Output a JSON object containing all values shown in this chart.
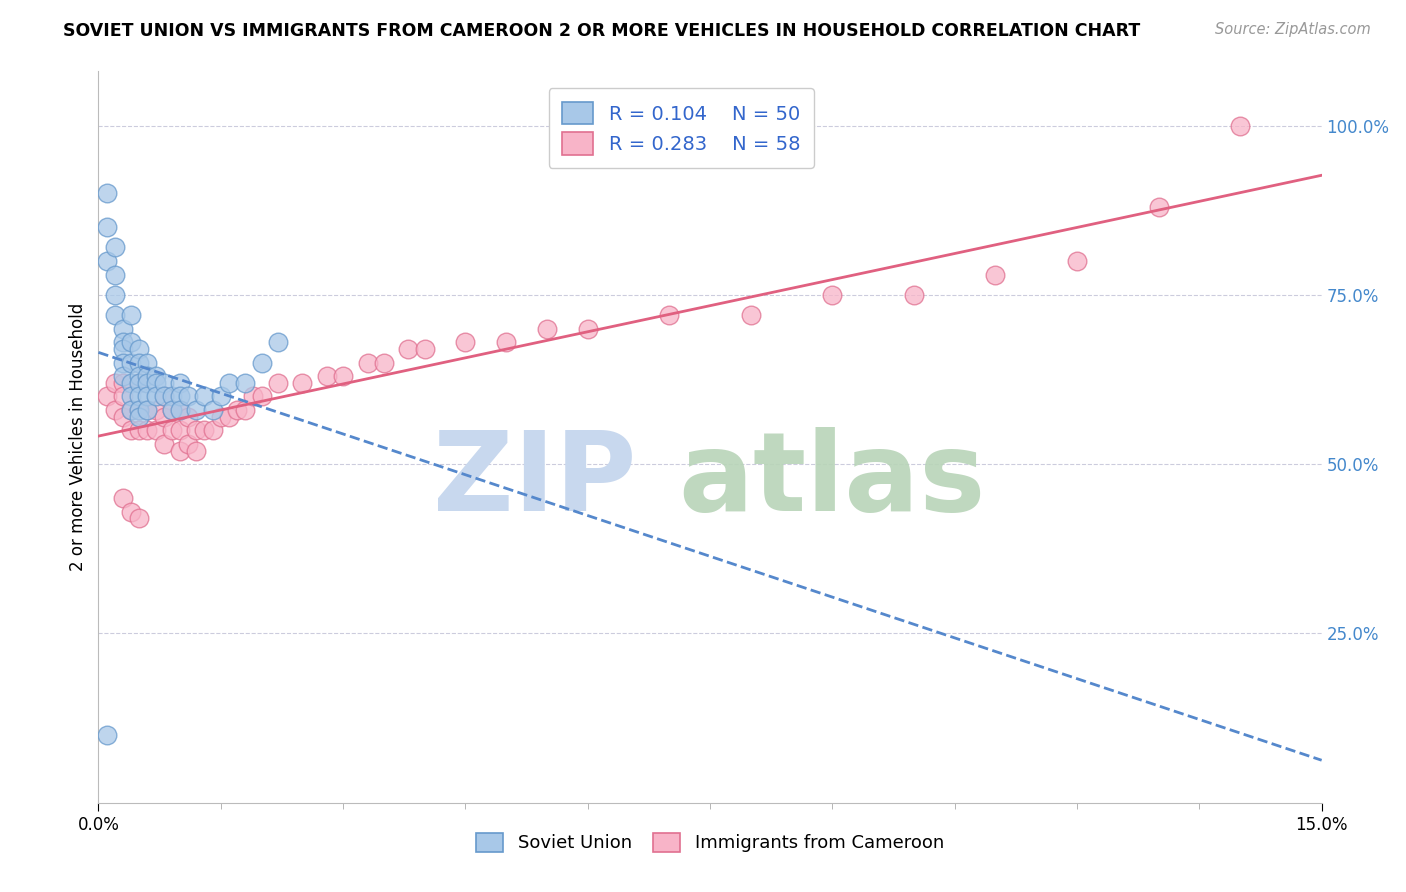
{
  "title": "SOVIET UNION VS IMMIGRANTS FROM CAMEROON 2 OR MORE VEHICLES IN HOUSEHOLD CORRELATION CHART",
  "source": "Source: ZipAtlas.com",
  "ylabel": "2 or more Vehicles in Household",
  "xlim": [
    0.0,
    0.15
  ],
  "ylim": [
    0.0,
    1.08
  ],
  "ytick_positions": [
    0.25,
    0.5,
    0.75,
    1.0
  ],
  "ytick_labels": [
    "25.0%",
    "50.0%",
    "75.0%",
    "100.0%"
  ],
  "ytick_color": "#4488cc",
  "legend_r1": "R = 0.104",
  "legend_n1": "N = 50",
  "legend_r2": "R = 0.283",
  "legend_n2": "N = 58",
  "color_soviet": "#a8c8e8",
  "color_cameroon": "#f8b4c8",
  "edge_soviet": "#6699cc",
  "edge_cameroon": "#e07090",
  "line_soviet_color": "#5588cc",
  "line_cameroon_color": "#e06080",
  "grid_color": "#ccccdd",
  "watermark_zip_color": "#c8d8ee",
  "watermark_atlas_color": "#b8d4b8",
  "soviet_x": [
    0.001,
    0.001,
    0.001,
    0.002,
    0.002,
    0.002,
    0.002,
    0.003,
    0.003,
    0.003,
    0.003,
    0.003,
    0.004,
    0.004,
    0.004,
    0.004,
    0.004,
    0.004,
    0.005,
    0.005,
    0.005,
    0.005,
    0.005,
    0.005,
    0.005,
    0.006,
    0.006,
    0.006,
    0.006,
    0.006,
    0.007,
    0.007,
    0.007,
    0.008,
    0.008,
    0.009,
    0.009,
    0.01,
    0.01,
    0.01,
    0.011,
    0.012,
    0.013,
    0.014,
    0.015,
    0.016,
    0.018,
    0.02,
    0.022,
    0.001
  ],
  "soviet_y": [
    0.9,
    0.85,
    0.8,
    0.82,
    0.78,
    0.75,
    0.72,
    0.7,
    0.68,
    0.67,
    0.65,
    0.63,
    0.72,
    0.68,
    0.65,
    0.62,
    0.6,
    0.58,
    0.67,
    0.65,
    0.63,
    0.62,
    0.6,
    0.58,
    0.57,
    0.65,
    0.63,
    0.62,
    0.6,
    0.58,
    0.63,
    0.62,
    0.6,
    0.62,
    0.6,
    0.6,
    0.58,
    0.62,
    0.6,
    0.58,
    0.6,
    0.58,
    0.6,
    0.58,
    0.6,
    0.62,
    0.62,
    0.65,
    0.68,
    0.1
  ],
  "cameroon_x": [
    0.001,
    0.002,
    0.002,
    0.003,
    0.003,
    0.003,
    0.004,
    0.004,
    0.005,
    0.005,
    0.005,
    0.006,
    0.006,
    0.007,
    0.007,
    0.008,
    0.008,
    0.008,
    0.009,
    0.009,
    0.01,
    0.01,
    0.01,
    0.011,
    0.011,
    0.012,
    0.012,
    0.013,
    0.014,
    0.015,
    0.016,
    0.017,
    0.018,
    0.019,
    0.02,
    0.022,
    0.025,
    0.028,
    0.03,
    0.033,
    0.035,
    0.038,
    0.04,
    0.045,
    0.05,
    0.055,
    0.06,
    0.07,
    0.08,
    0.09,
    0.1,
    0.11,
    0.12,
    0.13,
    0.003,
    0.004,
    0.005,
    0.14
  ],
  "cameroon_y": [
    0.6,
    0.62,
    0.58,
    0.62,
    0.6,
    0.57,
    0.58,
    0.55,
    0.62,
    0.58,
    0.55,
    0.58,
    0.55,
    0.58,
    0.55,
    0.6,
    0.57,
    0.53,
    0.58,
    0.55,
    0.58,
    0.55,
    0.52,
    0.57,
    0.53,
    0.55,
    0.52,
    0.55,
    0.55,
    0.57,
    0.57,
    0.58,
    0.58,
    0.6,
    0.6,
    0.62,
    0.62,
    0.63,
    0.63,
    0.65,
    0.65,
    0.67,
    0.67,
    0.68,
    0.68,
    0.7,
    0.7,
    0.72,
    0.72,
    0.75,
    0.75,
    0.78,
    0.8,
    0.88,
    0.45,
    0.43,
    0.42,
    1.0
  ]
}
